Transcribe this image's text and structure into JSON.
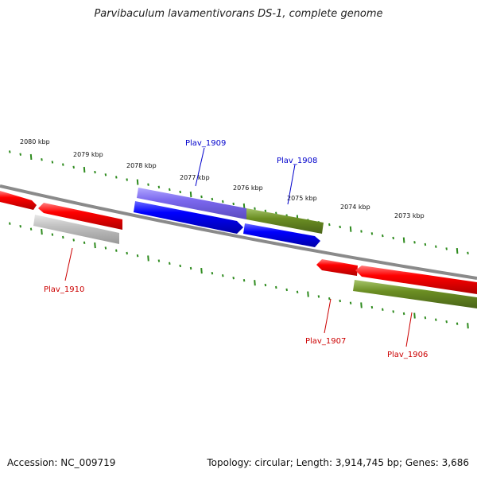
{
  "title": "Parvibaculum lavamentivorans DS-1, complete genome",
  "footer": {
    "accession": "Accession: NC_009719",
    "summary": "Topology: circular; Length: 3,914,745 bp; Genes: 3,686"
  },
  "colors": {
    "backbone": "#808080",
    "tick": "#2e8b1e",
    "forward_gene": "#ff0000",
    "reverse_gene": "#0000ff",
    "purple_gene": "#7b68ee",
    "olive_gene": "#6b8e23",
    "gray_gene": "#c0c0c0",
    "label_blue": "#0000cc",
    "label_red": "#cc0000"
  },
  "scale_labels": [
    "2080 kbp",
    "2079 kbp",
    "2078 kbp",
    "2077 kbp",
    "2076 kbp",
    "2075 kbp",
    "2074 kbp",
    "2073 kbp"
  ],
  "gene_labels": [
    {
      "name": "Plav_1909",
      "color": "label_blue"
    },
    {
      "name": "Plav_1908",
      "color": "label_blue"
    },
    {
      "name": "Plav_1910",
      "color": "label_red"
    },
    {
      "name": "Plav_1907",
      "color": "label_red"
    },
    {
      "name": "Plav_1906",
      "color": "label_red"
    }
  ]
}
